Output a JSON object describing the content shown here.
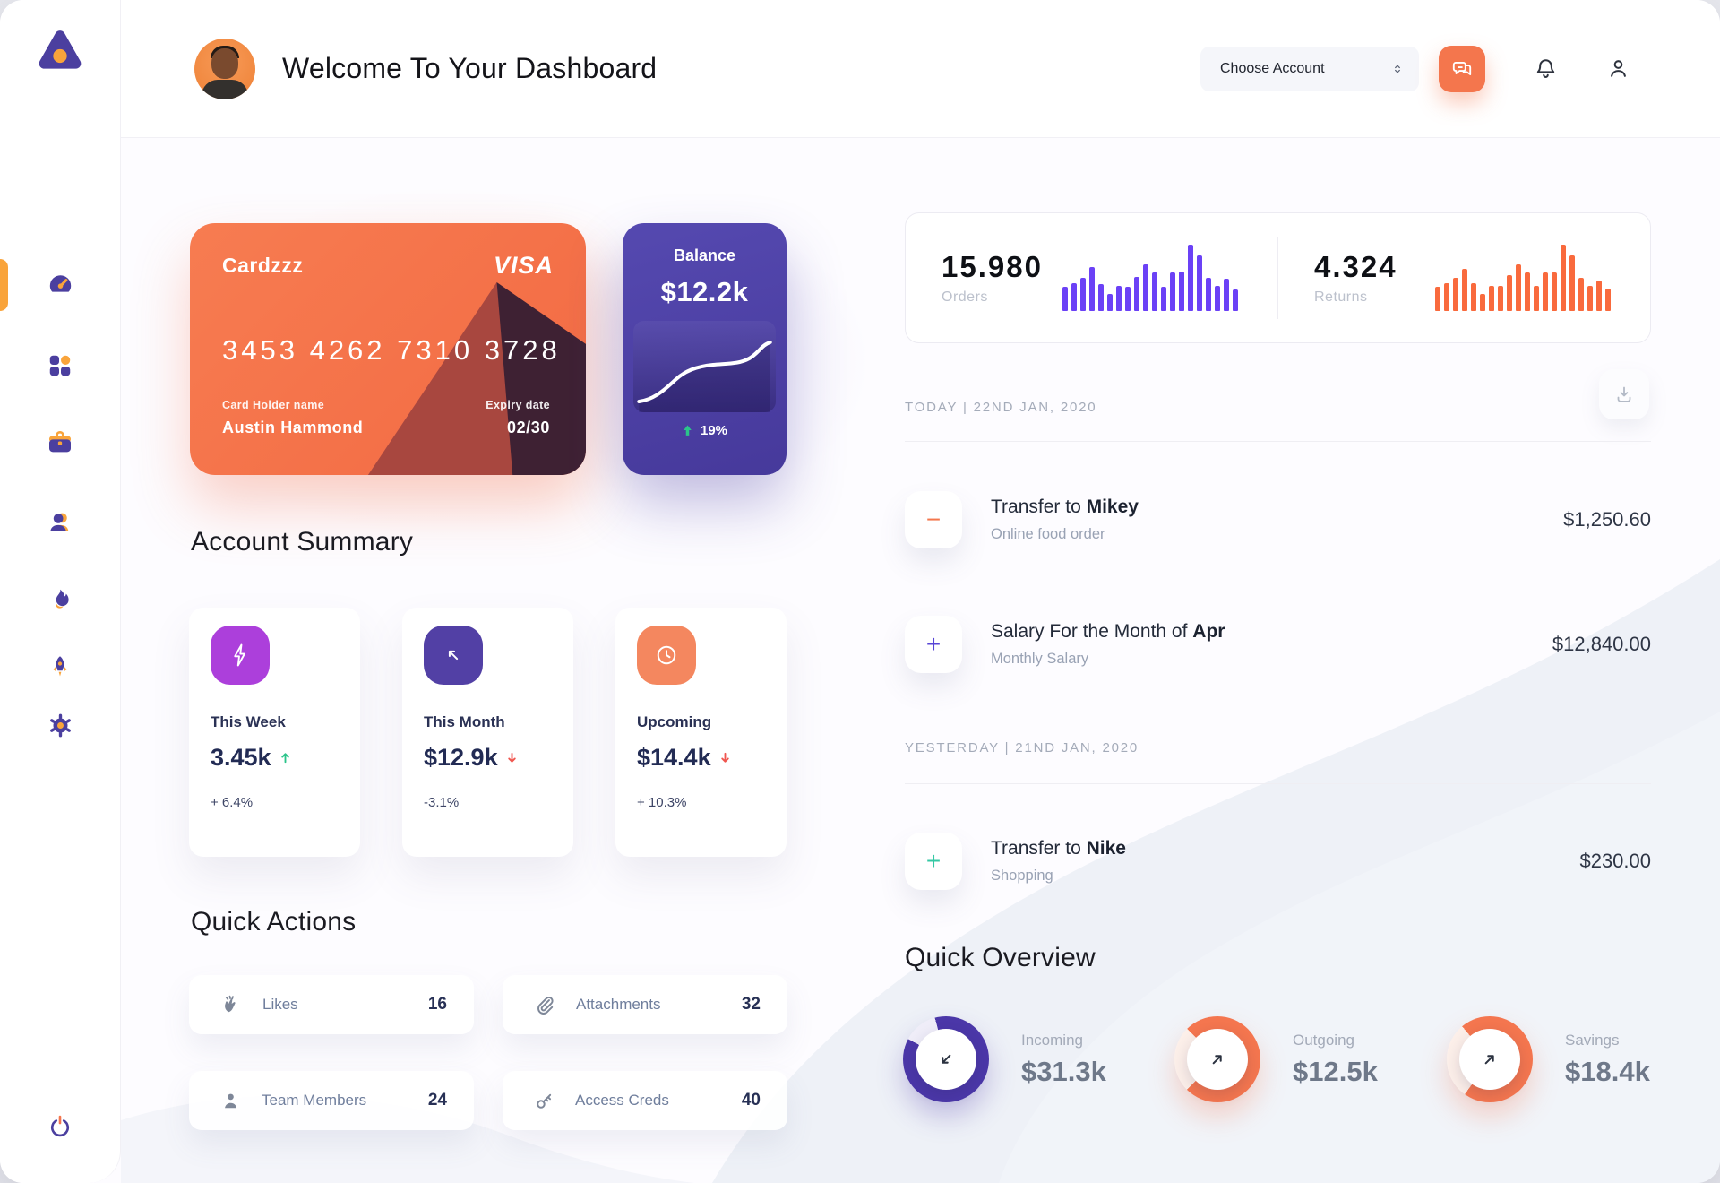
{
  "header": {
    "title": "Welcome To Your Dashboard",
    "account_selector": {
      "label": "Choose Account"
    }
  },
  "sidebar": {
    "items": [
      {
        "icon": "dashboard-icon",
        "active": true
      },
      {
        "icon": "apps-grid-icon"
      },
      {
        "icon": "briefcase-icon"
      },
      {
        "icon": "users-icon"
      },
      {
        "icon": "flame-icon"
      },
      {
        "icon": "rocket-icon"
      },
      {
        "icon": "settings-gear-icon"
      }
    ],
    "power_icon": "power-icon"
  },
  "credit_card": {
    "name": "Cardzzz",
    "brand": "VISA",
    "number": "3453 4262 7310 3728",
    "holder_label": "Card Holder name",
    "holder": "Austin Hammond",
    "expiry_label": "Expiry date",
    "expiry": "02/30"
  },
  "balance_card": {
    "label": "Balance",
    "value": "$12.2k",
    "delta": "19%"
  },
  "stats": {
    "orders": {
      "value": "15.980",
      "label": "Orders"
    },
    "returns": {
      "value": "4.324",
      "label": "Returns"
    }
  },
  "account_summary": {
    "title": "Account Summary",
    "cards": [
      {
        "label": "This Week",
        "value": "3.45k",
        "trend": "up",
        "delta": "+ 6.4%",
        "icon": "lightning-icon",
        "icon_bg": "#AC3FDB"
      },
      {
        "label": "This Month",
        "value": "$12.9k",
        "trend": "down",
        "delta": "-3.1%",
        "icon": "trend-arrow-icon",
        "icon_bg": "#5240A5"
      },
      {
        "label": "Upcoming",
        "value": "$14.4k",
        "trend": "down",
        "delta": "+ 10.3%",
        "icon": "clock-icon",
        "icon_bg": "#F4875F"
      }
    ]
  },
  "quick_actions": {
    "title": "Quick Actions",
    "items": [
      {
        "label": "Likes",
        "count": "16",
        "icon": "clap-icon"
      },
      {
        "label": "Attachments",
        "count": "32",
        "icon": "paperclip-icon"
      },
      {
        "label": "Team Members",
        "count": "24",
        "icon": "member-icon"
      },
      {
        "label": "Access Creds",
        "count": "40",
        "icon": "key-icon"
      }
    ]
  },
  "transactions": {
    "groups": [
      {
        "header": "TODAY | 22ND JAN, 2020",
        "rows": [
          {
            "sign": "−",
            "sign_color": "#F4774D",
            "title_prefix": "Transfer to ",
            "title_bold": "Mikey",
            "subtitle": "Online food order",
            "amount": "$1,250.60"
          },
          {
            "sign": "+",
            "sign_color": "#5846D6",
            "title_prefix": "Salary For the Month of ",
            "title_bold": "Apr",
            "subtitle": "Monthly Salary",
            "amount": "$12,840.00"
          }
        ]
      },
      {
        "header": "YESTERDAY | 21ND JAN, 2020",
        "rows": [
          {
            "sign": "+",
            "sign_color": "#35C8A4",
            "title_prefix": "Transfer to ",
            "title_bold": "Nike",
            "subtitle": "Shopping",
            "amount": "$230.00"
          }
        ]
      }
    ]
  },
  "quick_overview": {
    "title": "Quick Overview",
    "items": [
      {
        "label": "Incoming",
        "value": "$31.3k",
        "pct": 87,
        "from": -15,
        "color": "#4B37A8",
        "track": "#EFEDF8",
        "arrow": "down-left-arrow-icon"
      },
      {
        "label": "Outgoing",
        "value": "$12.5k",
        "pct": 75,
        "from": -45,
        "color": "#F4764F",
        "track": "#FCEFE9",
        "arrow": "up-right-arrow-icon"
      },
      {
        "label": "Savings",
        "value": "$18.4k",
        "pct": 71,
        "from": -40,
        "color": "#F4764F",
        "track": "#FCEFE9",
        "arrow": "up-right-arrow-icon"
      }
    ]
  },
  "chart_data": [
    {
      "type": "bar",
      "title": "Orders activity",
      "values": [
        36,
        42,
        50,
        66,
        40,
        26,
        38,
        36,
        52,
        70,
        58,
        36,
        58,
        60,
        100,
        84,
        50,
        38,
        48,
        32
      ],
      "color": "#6B41F6"
    },
    {
      "type": "bar",
      "title": "Returns activity",
      "values": [
        36,
        42,
        50,
        64,
        42,
        26,
        38,
        38,
        54,
        70,
        58,
        38,
        58,
        58,
        100,
        84,
        50,
        38,
        46,
        34
      ],
      "color": "#F96A3D"
    },
    {
      "type": "line",
      "title": "Balance trend",
      "values": [
        22,
        26,
        34,
        46,
        58,
        64,
        66,
        66,
        67,
        68,
        72,
        84,
        90,
        88
      ],
      "color": "#FFFFFF",
      "delta_direction": "up"
    }
  ]
}
